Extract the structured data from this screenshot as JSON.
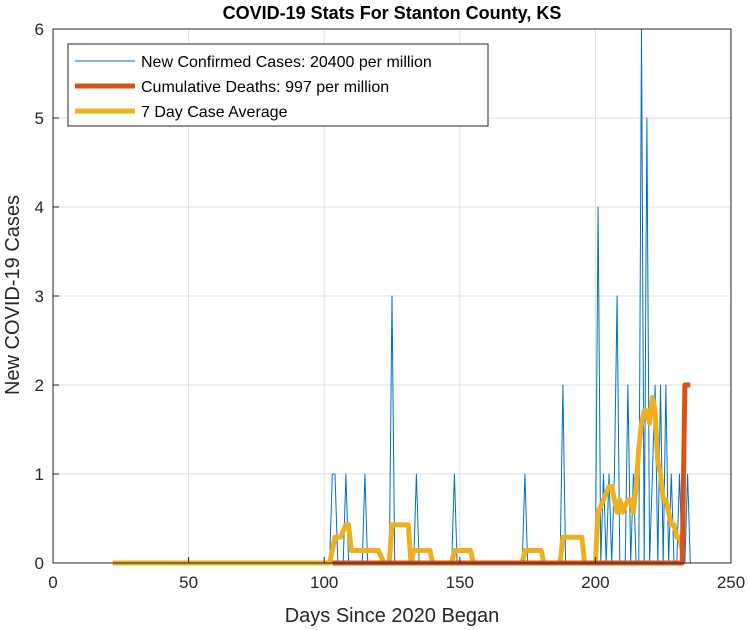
{
  "chart_data": {
    "type": "line",
    "title": "COVID-19 Stats For Stanton County, KS",
    "xlabel": "Days Since 2020 Began",
    "ylabel": "New COVID-19 Cases",
    "xlim": [
      0,
      250
    ],
    "ylim": [
      0,
      6
    ],
    "xticks": [
      "0",
      "50",
      "100",
      "150",
      "200",
      "250"
    ],
    "yticks": [
      "0",
      "1",
      "2",
      "3",
      "4",
      "5",
      "6"
    ],
    "grid": true,
    "legend_position": "top-left",
    "series": [
      {
        "name": "New Confirmed Cases: 20400 per million",
        "color": "#0072BD",
        "points": [
          [
            22,
            0
          ],
          [
            102,
            0
          ],
          [
            103,
            1
          ],
          [
            104,
            1
          ],
          [
            105,
            0
          ],
          [
            107,
            0
          ],
          [
            108,
            1
          ],
          [
            109,
            0
          ],
          [
            114,
            0
          ],
          [
            115,
            1
          ],
          [
            116,
            0
          ],
          [
            124,
            0
          ],
          [
            125,
            3
          ],
          [
            126,
            0
          ],
          [
            133,
            0
          ],
          [
            134,
            1
          ],
          [
            135,
            0
          ],
          [
            147,
            0
          ],
          [
            148,
            1
          ],
          [
            149,
            0
          ],
          [
            173,
            0
          ],
          [
            174,
            1
          ],
          [
            175,
            0
          ],
          [
            187,
            0
          ],
          [
            188,
            2
          ],
          [
            189,
            0
          ],
          [
            200,
            0
          ],
          [
            201,
            4
          ],
          [
            202,
            0
          ],
          [
            203,
            1
          ],
          [
            204,
            0
          ],
          [
            205,
            1
          ],
          [
            206,
            0
          ],
          [
            207,
            1
          ],
          [
            208,
            3
          ],
          [
            209,
            0
          ],
          [
            211,
            0
          ],
          [
            212,
            2
          ],
          [
            213,
            0
          ],
          [
            214,
            1
          ],
          [
            215,
            0
          ],
          [
            216,
            0
          ],
          [
            217,
            6
          ],
          [
            218,
            0
          ],
          [
            219,
            5
          ],
          [
            220,
            0
          ],
          [
            221,
            1
          ],
          [
            222,
            2
          ],
          [
            223,
            0
          ],
          [
            224,
            2
          ],
          [
            225,
            0
          ],
          [
            226,
            2
          ],
          [
            227,
            0
          ],
          [
            228,
            1
          ],
          [
            229,
            0
          ],
          [
            230,
            0
          ],
          [
            231,
            1
          ],
          [
            232,
            0
          ],
          [
            233,
            0
          ],
          [
            234,
            1
          ],
          [
            235,
            0
          ]
        ]
      },
      {
        "name": "Cumulative Deaths: 997 per million",
        "color": "#D95319",
        "points": [
          [
            103,
            0
          ],
          [
            232,
            0
          ],
          [
            233,
            2
          ],
          [
            235,
            2
          ]
        ]
      },
      {
        "name": "7 Day Case Average",
        "color": "#EDB120",
        "points": [
          [
            22,
            0
          ],
          [
            102,
            0
          ],
          [
            103,
            0.14
          ],
          [
            104,
            0.29
          ],
          [
            106,
            0.29
          ],
          [
            108,
            0.43
          ],
          [
            109,
            0.43
          ],
          [
            110,
            0.14
          ],
          [
            120,
            0.14
          ],
          [
            122,
            0
          ],
          [
            124,
            0
          ],
          [
            125,
            0.43
          ],
          [
            131,
            0.43
          ],
          [
            132,
            0
          ],
          [
            133,
            0.14
          ],
          [
            139,
            0.14
          ],
          [
            140,
            0
          ],
          [
            147,
            0
          ],
          [
            148,
            0.14
          ],
          [
            154,
            0.14
          ],
          [
            155,
            0
          ],
          [
            173,
            0
          ],
          [
            174,
            0.14
          ],
          [
            180,
            0.14
          ],
          [
            181,
            0
          ],
          [
            187,
            0
          ],
          [
            188,
            0.29
          ],
          [
            195,
            0.29
          ],
          [
            196,
            0
          ],
          [
            200,
            0
          ],
          [
            201,
            0.57
          ],
          [
            203,
            0.71
          ],
          [
            205,
            0.86
          ],
          [
            206,
            0.86
          ],
          [
            207,
            0.71
          ],
          [
            208,
            0.57
          ],
          [
            209,
            0.71
          ],
          [
            210,
            0.57
          ],
          [
            212,
            0.71
          ],
          [
            213,
            0.71
          ],
          [
            214,
            0.57
          ],
          [
            215,
            0.86
          ],
          [
            216,
            1.29
          ],
          [
            217,
            1.57
          ],
          [
            218,
            1.71
          ],
          [
            219,
            1.71
          ],
          [
            220,
            1.57
          ],
          [
            221,
            1.86
          ],
          [
            222,
            1.71
          ],
          [
            223,
            1.14
          ],
          [
            224,
            1.0
          ],
          [
            225,
            0.71
          ],
          [
            226,
            0.71
          ],
          [
            227,
            0.57
          ],
          [
            228,
            0.43
          ],
          [
            229,
            0.43
          ],
          [
            230,
            0.29
          ],
          [
            231,
            0.29
          ],
          [
            232,
            0.14
          ],
          [
            233,
            0.14
          ]
        ]
      }
    ]
  }
}
